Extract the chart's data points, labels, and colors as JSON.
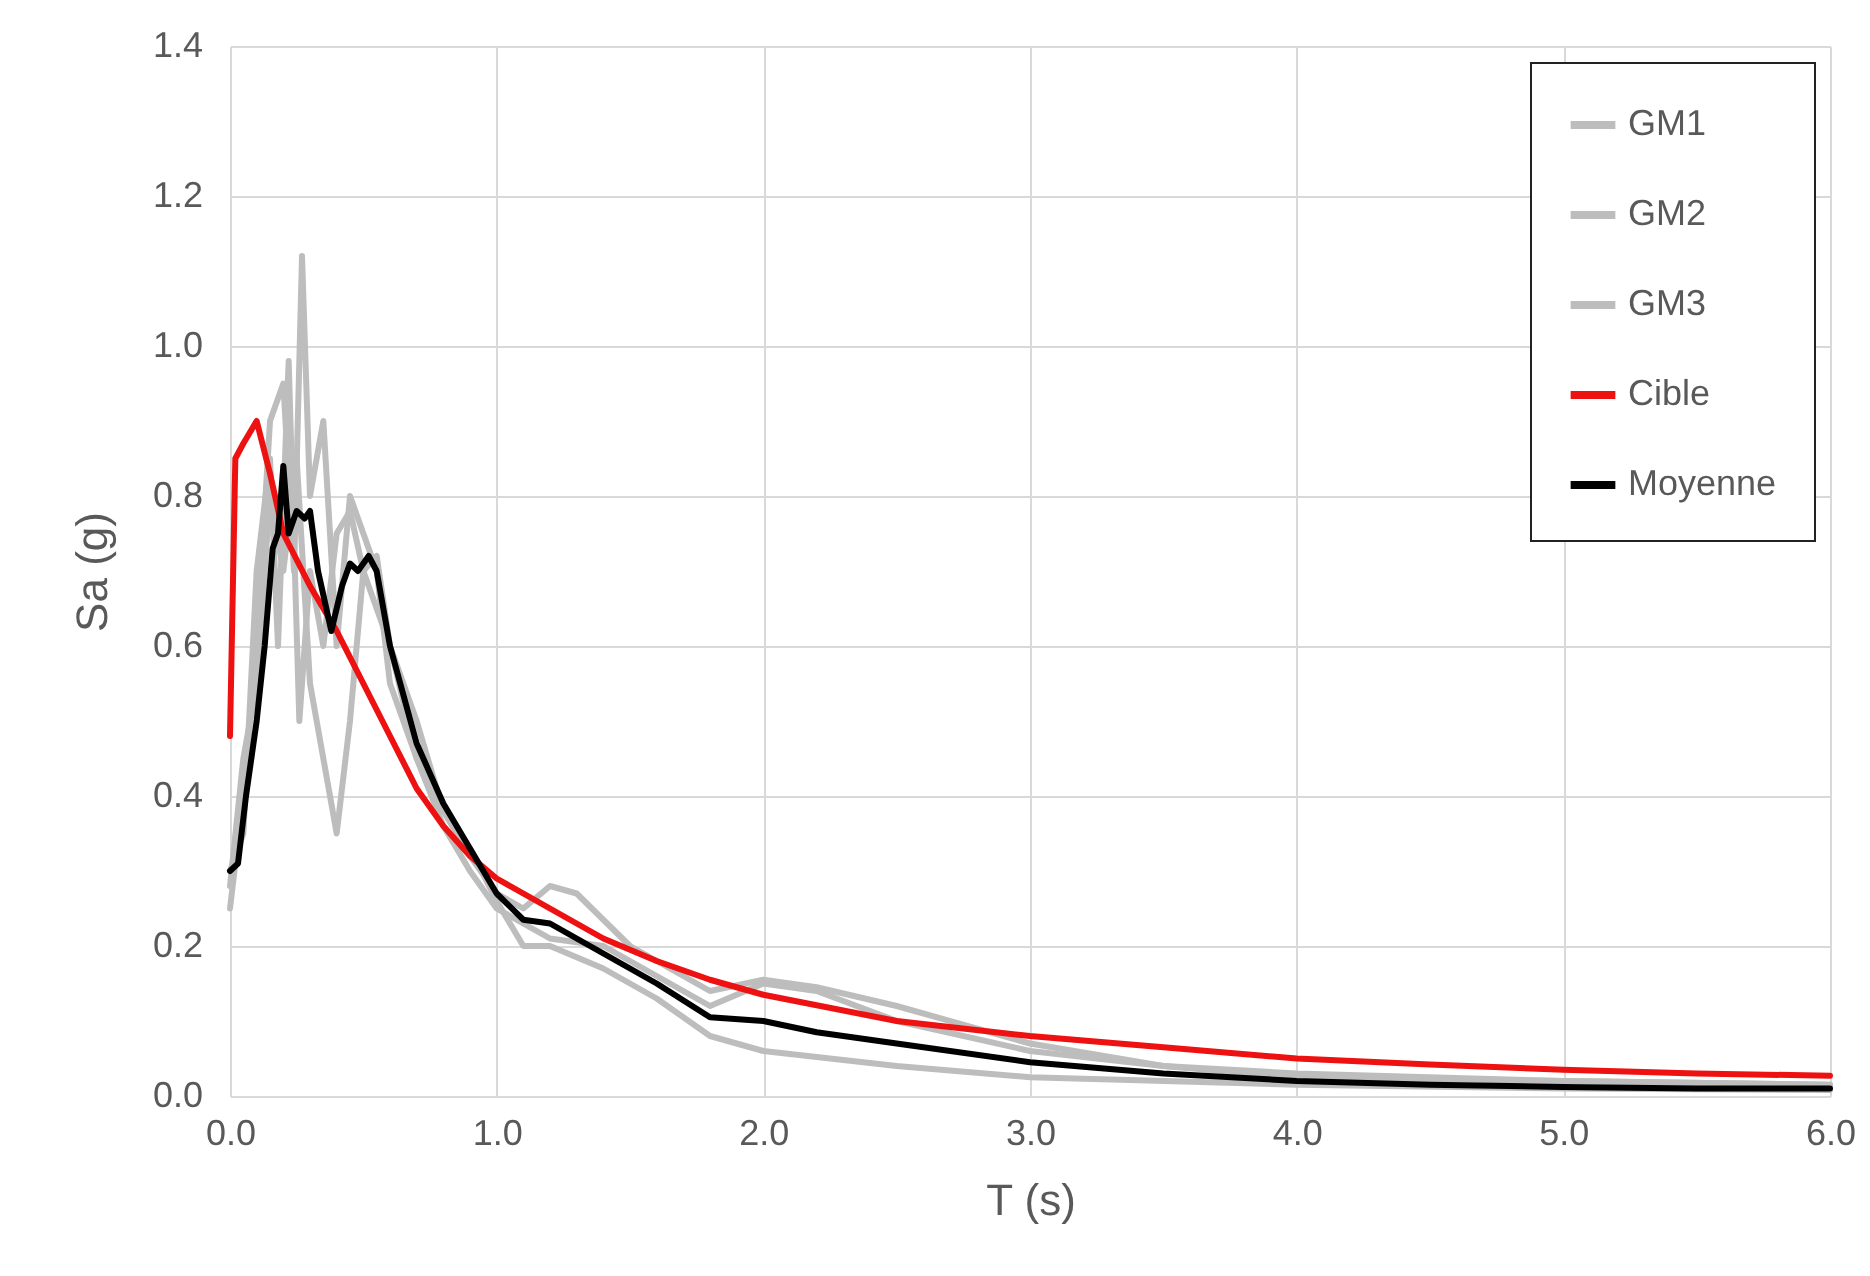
{
  "chart_data": {
    "type": "line",
    "xlabel": "T (s)",
    "ylabel": "Sa (g)",
    "xlim": [
      0,
      6
    ],
    "xticks": [
      {
        "value": 0,
        "label": "0.0"
      },
      {
        "value": 1,
        "label": "1.0"
      },
      {
        "value": 2,
        "label": "2.0"
      },
      {
        "value": 3,
        "label": "3.0"
      },
      {
        "value": 4,
        "label": "4.0"
      },
      {
        "value": 5,
        "label": "5.0"
      },
      {
        "value": 6,
        "label": "6.0"
      }
    ],
    "ylim": [
      0,
      1.4
    ],
    "yticks": [
      {
        "value": 0,
        "label": "0.0"
      },
      {
        "value": 0.2,
        "label": "0.2"
      },
      {
        "value": 0.4,
        "label": "0.4"
      },
      {
        "value": 0.6,
        "label": "0.6"
      },
      {
        "value": 0.8,
        "label": "0.8"
      },
      {
        "value": 1,
        "label": "1.0"
      },
      {
        "value": 1.2,
        "label": "1.2"
      },
      {
        "value": 1.4,
        "label": "1.4"
      }
    ],
    "grid": true,
    "legend": "top right",
    "marker": "none",
    "line_style": "solid",
    "series": [
      {
        "name": "GM1",
        "color": "#bdbdbd",
        "x": [
          0,
          0.05,
          0.1,
          0.15,
          0.2,
          0.24,
          0.27,
          0.3,
          0.35,
          0.4,
          0.45,
          0.5,
          0.55,
          0.6,
          0.7,
          0.8,
          0.9,
          1.0,
          1.1,
          1.2,
          1.3,
          1.5,
          1.8,
          2.0,
          2.2,
          2.5,
          3.0,
          3.5,
          4.0,
          5.0,
          6.0
        ],
        "values": [
          0.25,
          0.4,
          0.6,
          0.9,
          0.95,
          0.7,
          1.12,
          0.8,
          0.9,
          0.6,
          0.8,
          0.75,
          0.7,
          0.55,
          0.45,
          0.38,
          0.32,
          0.27,
          0.25,
          0.28,
          0.27,
          0.2,
          0.14,
          0.155,
          0.145,
          0.12,
          0.07,
          0.04,
          0.025,
          0.02,
          0.015
        ]
      },
      {
        "name": "GM2",
        "color": "#bdbdbd",
        "x": [
          0,
          0.05,
          0.1,
          0.15,
          0.18,
          0.22,
          0.26,
          0.3,
          0.35,
          0.4,
          0.45,
          0.5,
          0.55,
          0.6,
          0.7,
          0.8,
          0.9,
          1.0,
          1.1,
          1.2,
          1.4,
          1.6,
          1.8,
          2.0,
          2.5,
          3.0,
          4.0,
          5.0,
          6.0
        ],
        "values": [
          0.3,
          0.35,
          0.7,
          0.85,
          0.6,
          0.98,
          0.5,
          0.7,
          0.6,
          0.75,
          0.78,
          0.7,
          0.72,
          0.6,
          0.5,
          0.38,
          0.33,
          0.26,
          0.2,
          0.2,
          0.17,
          0.13,
          0.08,
          0.06,
          0.04,
          0.025,
          0.015,
          0.01,
          0.008
        ]
      },
      {
        "name": "GM3",
        "color": "#bdbdbd",
        "x": [
          0,
          0.05,
          0.1,
          0.15,
          0.2,
          0.25,
          0.3,
          0.35,
          0.4,
          0.45,
          0.5,
          0.55,
          0.6,
          0.7,
          0.8,
          0.9,
          1.0,
          1.2,
          1.4,
          1.6,
          1.8,
          2.0,
          2.2,
          2.5,
          3.0,
          3.5,
          4.0,
          5.0,
          6.0
        ],
        "values": [
          0.28,
          0.45,
          0.55,
          0.8,
          0.7,
          0.85,
          0.55,
          0.45,
          0.35,
          0.5,
          0.7,
          0.65,
          0.6,
          0.45,
          0.36,
          0.3,
          0.25,
          0.21,
          0.2,
          0.16,
          0.12,
          0.15,
          0.14,
          0.1,
          0.06,
          0.04,
          0.03,
          0.02,
          0.015
        ]
      },
      {
        "name": "Cible",
        "color": "#ee1111",
        "x": [
          0,
          0.02,
          0.05,
          0.1,
          0.15,
          0.2,
          0.3,
          0.4,
          0.5,
          0.6,
          0.7,
          0.8,
          0.9,
          1.0,
          1.2,
          1.4,
          1.6,
          1.8,
          2.0,
          2.5,
          3.0,
          3.5,
          4.0,
          4.5,
          5.0,
          5.5,
          6.0
        ],
        "values": [
          0.48,
          0.85,
          0.87,
          0.9,
          0.83,
          0.75,
          0.68,
          0.62,
          0.55,
          0.48,
          0.41,
          0.36,
          0.32,
          0.29,
          0.25,
          0.21,
          0.18,
          0.155,
          0.135,
          0.1,
          0.08,
          0.065,
          0.05,
          0.042,
          0.035,
          0.03,
          0.027
        ]
      },
      {
        "name": "Moyenne",
        "color": "#000000",
        "x": [
          0,
          0.03,
          0.06,
          0.1,
          0.13,
          0.16,
          0.18,
          0.2,
          0.22,
          0.25,
          0.28,
          0.3,
          0.33,
          0.38,
          0.42,
          0.45,
          0.48,
          0.52,
          0.55,
          0.6,
          0.7,
          0.8,
          0.9,
          1.0,
          1.1,
          1.2,
          1.4,
          1.6,
          1.8,
          2.0,
          2.2,
          2.5,
          3.0,
          3.5,
          4.0,
          4.5,
          5.0,
          5.5,
          6.0
        ],
        "values": [
          0.3,
          0.31,
          0.4,
          0.5,
          0.6,
          0.73,
          0.75,
          0.84,
          0.75,
          0.78,
          0.77,
          0.78,
          0.7,
          0.62,
          0.68,
          0.71,
          0.7,
          0.72,
          0.7,
          0.6,
          0.47,
          0.39,
          0.33,
          0.27,
          0.235,
          0.23,
          0.19,
          0.15,
          0.105,
          0.1,
          0.085,
          0.07,
          0.045,
          0.03,
          0.02,
          0.015,
          0.012,
          0.01,
          0.01
        ]
      }
    ]
  }
}
